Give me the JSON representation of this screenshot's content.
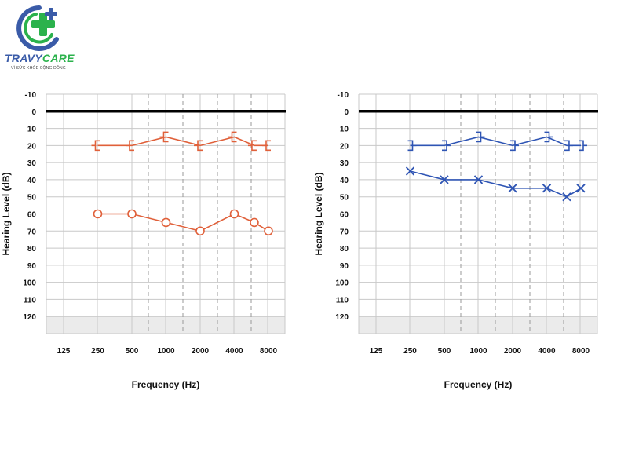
{
  "logo": {
    "brand_part1": "TRAVY",
    "brand_part2": "CARE",
    "tagline": "VÌ SỨC KHỎE CỘNG ĐỒNG"
  },
  "colors": {
    "right_ear": "#e0603a",
    "left_ear": "#2f55b4",
    "logo_blue": "#3a5ba8",
    "logo_green": "#2bb24c"
  },
  "chart_data": [
    {
      "type": "line",
      "xlabel": "Frequency (Hz)",
      "ylabel": "Hearing Level (dB)",
      "x_ticks": [
        "125",
        "250",
        "500",
        "1000",
        "2000",
        "4000",
        "8000"
      ],
      "y_ticks": [
        "-10",
        "0",
        "10",
        "20",
        "30",
        "40",
        "50",
        "60",
        "70",
        "80",
        "90",
        "100",
        "110",
        "120"
      ],
      "ylim": [
        -10,
        130
      ],
      "y_inverted": true,
      "grid": true,
      "series": [
        {
          "color": "#e0603a",
          "marker": "bone-bracket-right",
          "x": [
            250,
            500,
            1000,
            2000,
            4000,
            6000,
            8000
          ],
          "values": [
            20,
            20,
            15,
            20,
            15,
            20,
            20
          ]
        },
        {
          "color": "#e0603a",
          "marker": "circle",
          "x": [
            250,
            500,
            1000,
            2000,
            4000,
            6000,
            8000
          ],
          "values": [
            60,
            60,
            65,
            70,
            60,
            65,
            70
          ]
        }
      ]
    },
    {
      "type": "line",
      "xlabel": "Frequency (Hz)",
      "ylabel": "Hearing Level (dB)",
      "x_ticks": [
        "125",
        "250",
        "500",
        "1000",
        "2000",
        "4000",
        "8000"
      ],
      "y_ticks": [
        "-10",
        "0",
        "10",
        "20",
        "30",
        "40",
        "50",
        "60",
        "70",
        "80",
        "90",
        "100",
        "110",
        "120"
      ],
      "ylim": [
        -10,
        130
      ],
      "y_inverted": true,
      "grid": true,
      "series": [
        {
          "color": "#2f55b4",
          "marker": "bone-bracket-left",
          "x": [
            250,
            500,
            1000,
            2000,
            4000,
            6000,
            8000
          ],
          "values": [
            20,
            20,
            15,
            20,
            15,
            20,
            20
          ]
        },
        {
          "color": "#2f55b4",
          "marker": "x",
          "x": [
            250,
            500,
            1000,
            2000,
            4000,
            6000,
            8000
          ],
          "values": [
            35,
            40,
            40,
            45,
            45,
            50,
            45
          ]
        }
      ]
    }
  ]
}
